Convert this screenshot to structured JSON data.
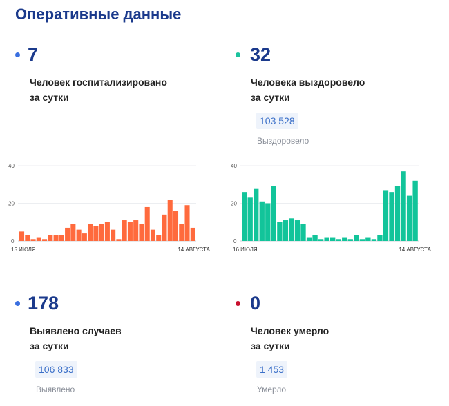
{
  "header": {
    "title": "Оперативные данные"
  },
  "colors": {
    "blue_dot": "#3a6fe0",
    "teal_dot": "#1cc39e",
    "red_dot": "#c8102e",
    "bar_orange": "#ff6a3d",
    "bar_teal": "#12c49a"
  },
  "stats": {
    "hospitalized": {
      "value": "7",
      "line1": "Человек госпитализировано",
      "line2": "за сутки"
    },
    "recovered": {
      "value": "32",
      "line1": "Человека выздоровело",
      "line2": "за сутки",
      "total": "103 528",
      "total_label": "Выздоровело"
    },
    "cases": {
      "value": "178",
      "line1": "Выявлено случаев",
      "line2": "за сутки",
      "total": "106 833",
      "total_label": "Выявлено"
    },
    "deaths": {
      "value": "0",
      "line1": "Человек умерло",
      "line2": "за сутки",
      "total": "1 453",
      "total_label": "Умерло"
    }
  },
  "chart_data": [
    {
      "type": "bar",
      "ylim": [
        0,
        40
      ],
      "yticks": [
        "0",
        "20",
        "40"
      ],
      "start_label": "15 ИЮЛЯ",
      "end_label": "14 АВГУСТА",
      "values": [
        5,
        3,
        1,
        2,
        1,
        3,
        3,
        3,
        7,
        9,
        6,
        4,
        9,
        8,
        9,
        10,
        6,
        1,
        11,
        10,
        11,
        9,
        18,
        6,
        3,
        14,
        22,
        16,
        9,
        19,
        7
      ]
    },
    {
      "type": "bar",
      "ylim": [
        0,
        40
      ],
      "yticks": [
        "0",
        "20",
        "40"
      ],
      "start_label": "16 ИЮЛЯ",
      "end_label": "14 АВГУСТА",
      "values": [
        26,
        23,
        28,
        21,
        20,
        29,
        10,
        11,
        12,
        11,
        9,
        2,
        3,
        1,
        2,
        2,
        1,
        2,
        1,
        3,
        1,
        2,
        1,
        3,
        27,
        26,
        29,
        37,
        24,
        32
      ]
    }
  ]
}
